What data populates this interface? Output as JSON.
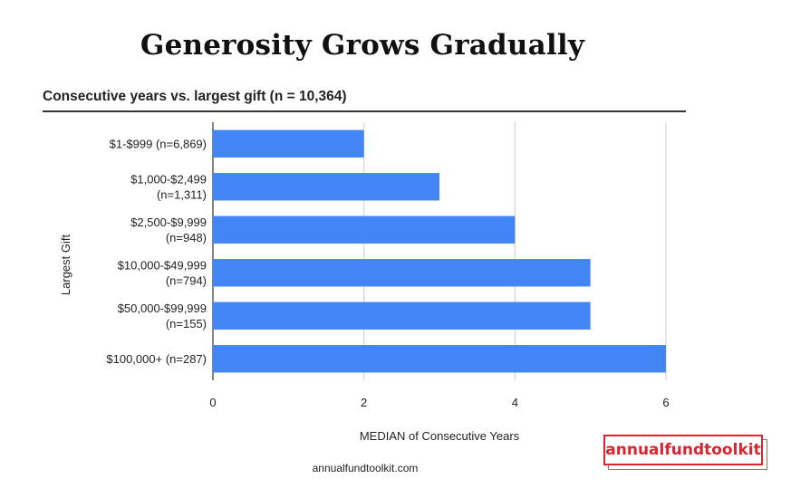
{
  "headline": "Generosity Grows Gradually",
  "footer_url": "annualfundtoolkit.com",
  "brand_logo": "annualfundtoolkit",
  "chart_data": {
    "type": "bar",
    "orientation": "horizontal",
    "title": "Consecutive years vs. largest gift (n = 10,364)",
    "xlabel": "MEDIAN of Consecutive Years",
    "ylabel": "Largest Gift",
    "categories": [
      [
        "$1-$999 (n=6,869)"
      ],
      [
        "$1,000-$2,499",
        "(n=1,311)"
      ],
      [
        "$2,500-$9,999",
        "(n=948)"
      ],
      [
        "$10,000-$49,999",
        "(n=794)"
      ],
      [
        "$50,000-$99,999",
        "(n=155)"
      ],
      [
        "$100,000+ (n=287)"
      ]
    ],
    "values": [
      2,
      3,
      4,
      5,
      5,
      6
    ],
    "xlim": [
      0,
      6
    ],
    "xticks": [
      "0",
      "2",
      "4",
      "6"
    ],
    "grid": true,
    "bar_color": "#4285f4"
  }
}
